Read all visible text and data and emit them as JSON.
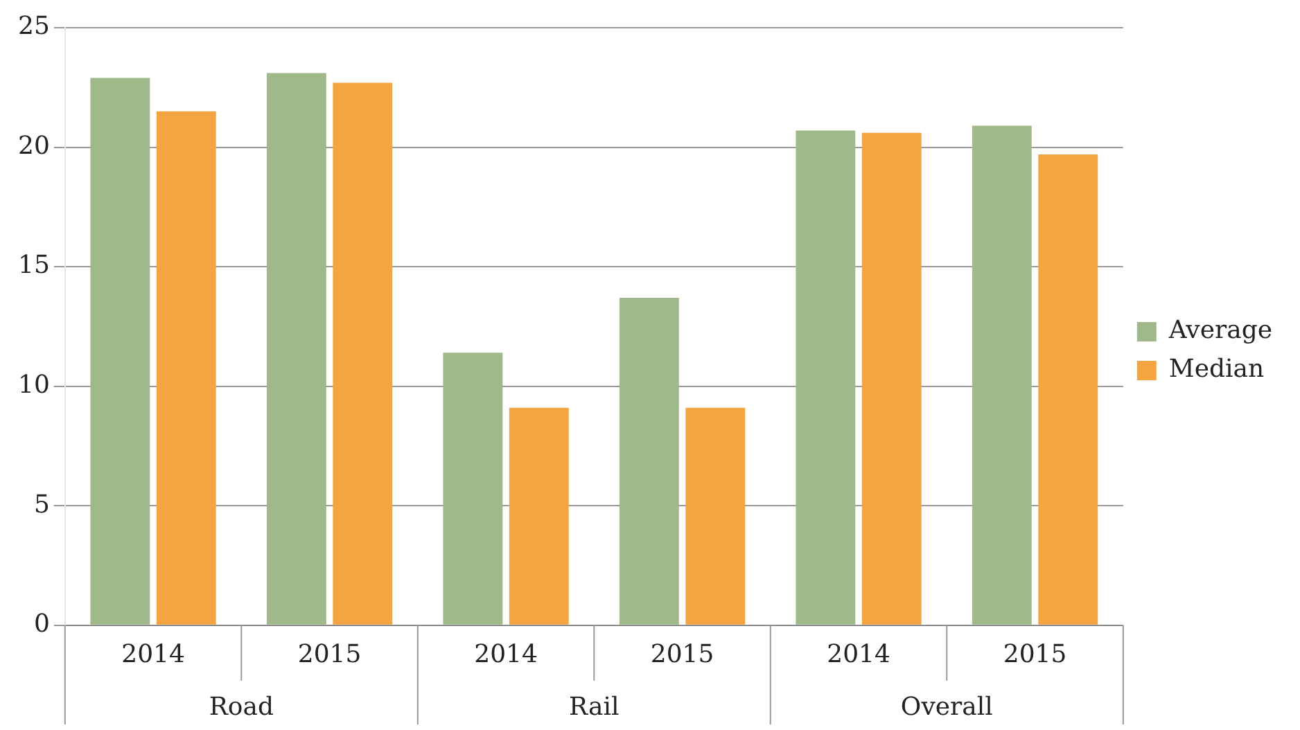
{
  "chart_data": {
    "type": "bar",
    "categories": [
      "2014",
      "2015",
      "2014",
      "2015",
      "2014",
      "2015"
    ],
    "series": [
      {
        "name": "Average",
        "color": "#9fb98a",
        "values": [
          22.9,
          23.1,
          11.4,
          13.7,
          20.7,
          20.9
        ]
      },
      {
        "name": "Median",
        "color": "#f4a541",
        "values": [
          21.5,
          22.7,
          9.1,
          9.1,
          20.6,
          19.7
        ]
      }
    ],
    "ylim": [
      0,
      25
    ],
    "yticks": [
      0,
      5,
      10,
      15,
      20,
      25
    ],
    "grid": "y",
    "legend": "right",
    "annotations": [
      "Road",
      "Rail",
      "Overall"
    ]
  }
}
